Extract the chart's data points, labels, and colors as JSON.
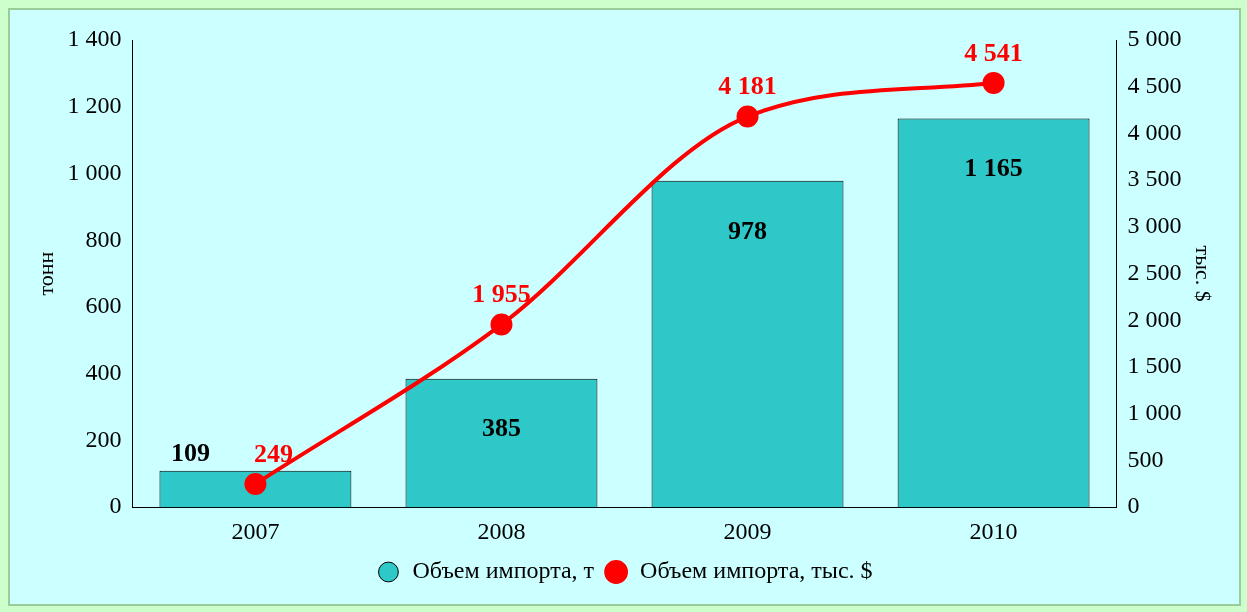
{
  "chart_data": {
    "type": "bar",
    "categories": [
      "2007",
      "2008",
      "2009",
      "2010"
    ],
    "series": [
      {
        "name": "Объем импорта, т",
        "color": "#2ec8c8",
        "values": [
          109,
          385,
          978,
          1165
        ]
      },
      {
        "name": "Объем импорта, тыс. $",
        "type": "line",
        "axis": "y2",
        "color": "#ff0000",
        "marker": "circle",
        "values": [
          249,
          1955,
          4181,
          4541
        ]
      }
    ],
    "ylabel": "тонн",
    "y2label": "тыс. $",
    "ylim": [
      0,
      1400
    ],
    "yticks": [
      0,
      200,
      400,
      600,
      800,
      {
        "value": 1000,
        "label": "1 000"
      },
      {
        "value": 1200,
        "label": "1 200"
      },
      {
        "value": 1400,
        "label": "1 400"
      }
    ],
    "y2lim": [
      0,
      5000
    ],
    "y2ticks": [
      0,
      500,
      {
        "value": 1000,
        "label": "1 000"
      },
      {
        "value": 1500,
        "label": "1 500"
      },
      {
        "value": 2000,
        "label": "2 000"
      },
      {
        "value": 2500,
        "label": "2 500"
      },
      {
        "value": 3000,
        "label": "3 000"
      },
      {
        "value": 3500,
        "label": "3 500"
      },
      {
        "value": 4000,
        "label": "4 000"
      },
      {
        "value": 4500,
        "label": "4 500"
      },
      {
        "value": 5000,
        "label": "5 000"
      }
    ],
    "data_labels": true,
    "legend": "bottom",
    "grid": false
  }
}
